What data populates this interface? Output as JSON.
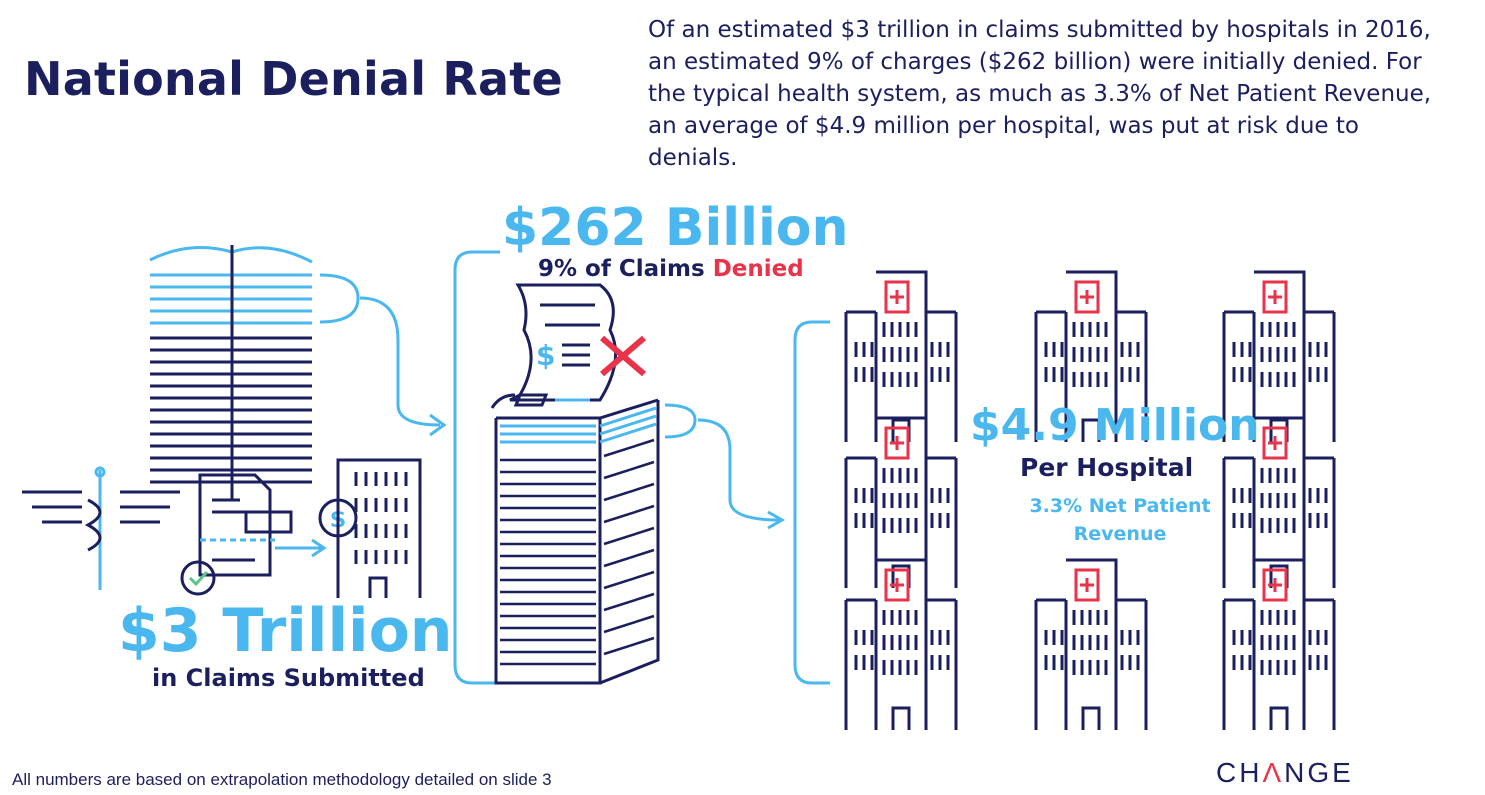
{
  "slide": {
    "title": "National Denial Rate",
    "intro": "Of an estimated $3 trillion in claims submitted by hospitals in 2016, an estimated 9% of charges ($262 billion) were initially denied. For the typical health system, as much as 3.3% of Net Patient Revenue, an average of $4.9 million per hospital, was put at risk due to denials."
  },
  "stats": {
    "submitted": {
      "value": "$3 Trillion",
      "label": "in Claims Submitted"
    },
    "denied": {
      "value": "$262 Billion",
      "label_prefix": "9% of Claims ",
      "label_highlight": "Denied"
    },
    "per_hospital": {
      "value": "$4.9 Million",
      "label": "Per Hospital",
      "note": "3.3% Net Patient Revenue"
    }
  },
  "footnote": "All numbers are based on extrapolation methodology detailed on slide 3",
  "logo": {
    "pre": "CH",
    "accent": "Ʌ",
    "post": "NGE"
  },
  "colors": {
    "navy": "#1b1f5e",
    "blue": "#4ab8ef",
    "red": "#e8334a"
  },
  "icons": [
    "skyscraper-icon",
    "caduceus-icon",
    "invoice-icon",
    "check-icon",
    "dollar-coin-icon",
    "office-building-icon",
    "denied-claim-icon",
    "paper-stack-icon",
    "hospital-icon"
  ]
}
